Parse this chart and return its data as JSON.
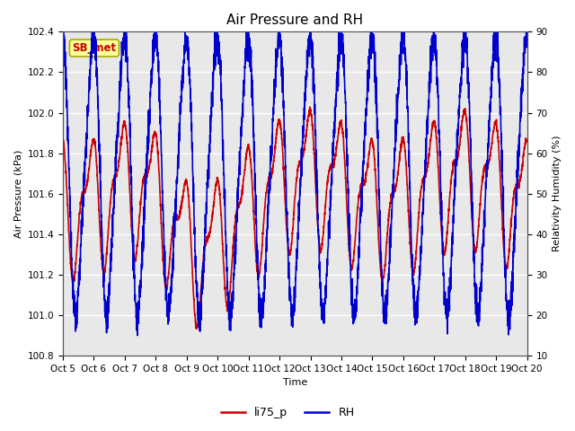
{
  "title": "Air Pressure and RH",
  "xlabel": "Time",
  "ylabel_left": "Air Pressure (kPa)",
  "ylabel_right": "Relativity Humidity (%)",
  "ylim_left": [
    100.8,
    102.4
  ],
  "ylim_right": [
    10,
    90
  ],
  "yticks_left": [
    100.8,
    101.0,
    101.2,
    101.4,
    101.6,
    101.8,
    102.0,
    102.2,
    102.4
  ],
  "yticks_right": [
    10,
    20,
    30,
    40,
    50,
    60,
    70,
    80,
    90
  ],
  "xtick_labels": [
    "Oct 5",
    "Oct 6",
    "Oct 7",
    "Oct 8",
    "Oct 9",
    "Oct 10",
    "Oct 11",
    "Oct 12",
    "Oct 13",
    "Oct 14",
    "Oct 15",
    "Oct 16",
    "Oct 17",
    "Oct 18",
    "Oct 19",
    "Oct 20"
  ],
  "color_pressure": "#cc0000",
  "color_rh": "#0000cc",
  "legend_labels": [
    "li75_p",
    "RH"
  ],
  "annotation_text": "SB_met",
  "annotation_color": "#cc0000",
  "annotation_bg": "#ffff99",
  "annotation_border": "#aaa800",
  "plot_bg_color": "#e8e8e8",
  "fig_bg_color": "#ffffff",
  "linewidth_pressure": 1.2,
  "linewidth_rh": 1.2,
  "title_fontsize": 11,
  "axis_label_fontsize": 8,
  "tick_fontsize": 7.5,
  "legend_fontsize": 9,
  "annotation_fontsize": 8.5
}
